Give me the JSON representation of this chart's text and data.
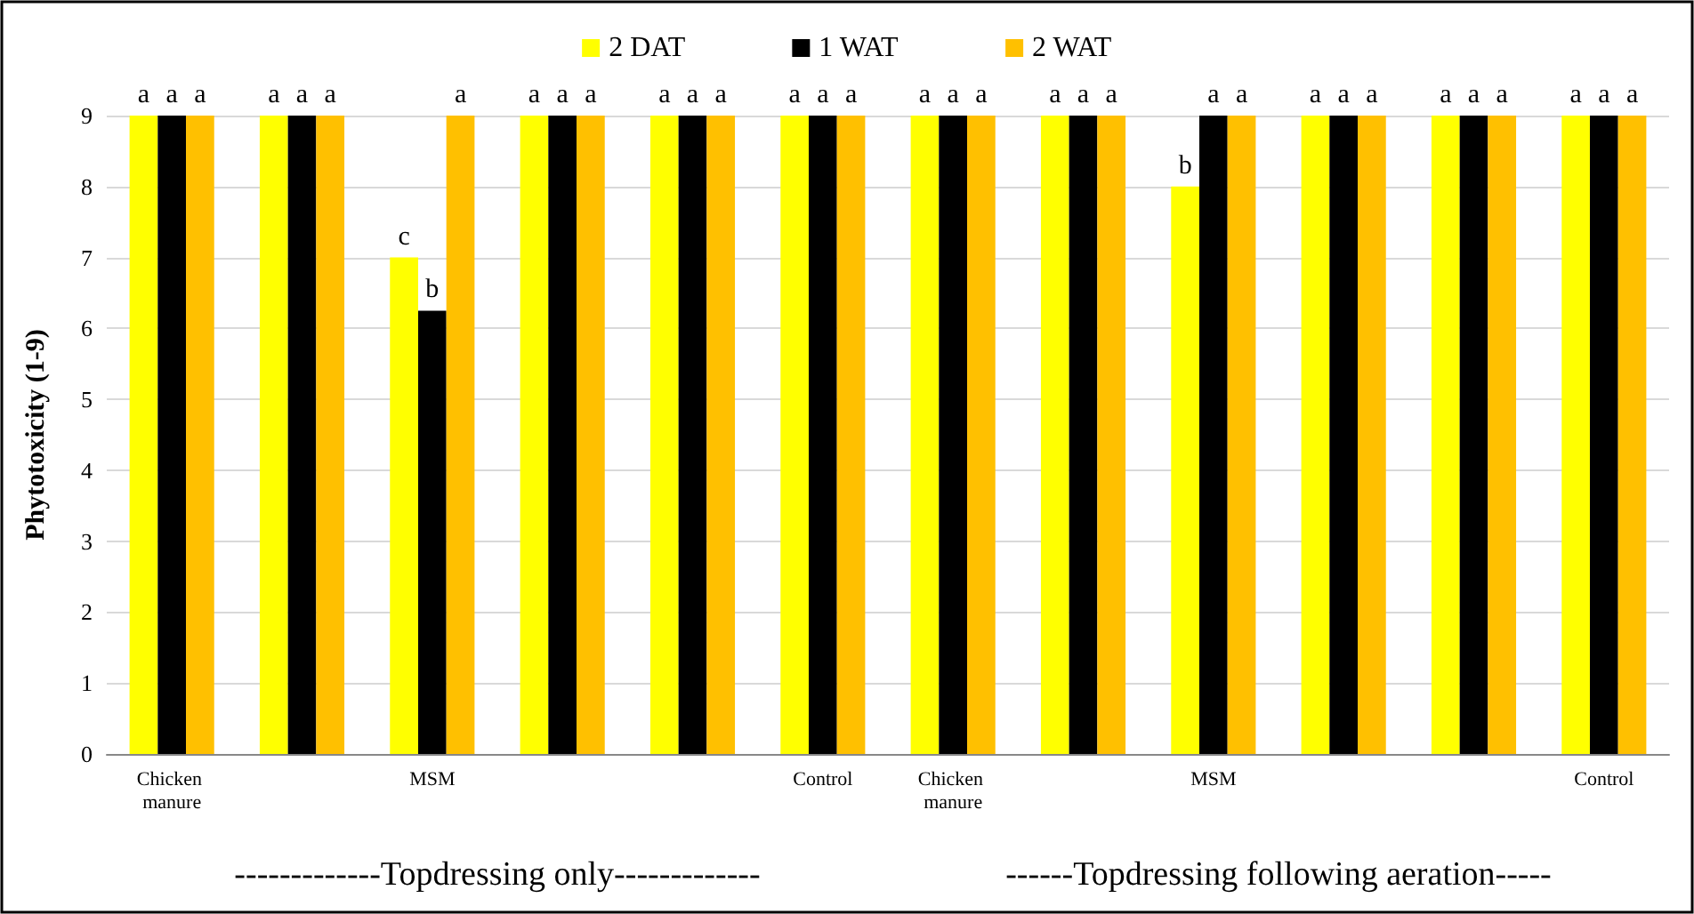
{
  "chart_data": {
    "type": "bar",
    "ylabel": "Phytotoxicity (1-9)",
    "categories": [
      "Chicken manure",
      null,
      "MSM",
      null,
      null,
      "Control",
      "Chicken manure",
      null,
      "MSM",
      null,
      null,
      "Control"
    ],
    "series": [
      {
        "name": "2 DAT",
        "color": "#ffff00",
        "values": [
          9,
          9,
          7,
          9,
          9,
          9,
          9,
          9,
          8,
          9,
          9,
          9
        ],
        "value_labels": [
          "a",
          "a",
          "c",
          "a",
          "a",
          "a",
          "a",
          "a",
          "b",
          "a",
          "a",
          "a"
        ]
      },
      {
        "name": "1 WAT",
        "color": "#000000",
        "values": [
          9,
          9,
          6.25,
          9,
          9,
          9,
          9,
          9,
          9,
          9,
          9,
          9
        ],
        "value_labels": [
          "a",
          "a",
          "b",
          "a",
          "a",
          "a",
          "a",
          "a",
          "a",
          "a",
          "a",
          "a"
        ]
      },
      {
        "name": "2 WAT",
        "color": "#ffc000",
        "values": [
          9,
          9,
          9,
          9,
          9,
          9,
          9,
          9,
          9,
          9,
          9,
          9
        ],
        "value_labels": [
          "a",
          "a",
          "a",
          "a",
          "a",
          "a",
          "a",
          "a",
          "a",
          "a",
          "a",
          "a"
        ]
      }
    ],
    "ylim": [
      0,
      9
    ],
    "yticks": [
      0,
      1,
      2,
      3,
      4,
      5,
      6,
      7,
      8,
      9
    ],
    "grid": "y",
    "legend": "top",
    "annotations": [
      "-------------Topdressing only-------------",
      "------Topdressing following aeration-----"
    ]
  }
}
